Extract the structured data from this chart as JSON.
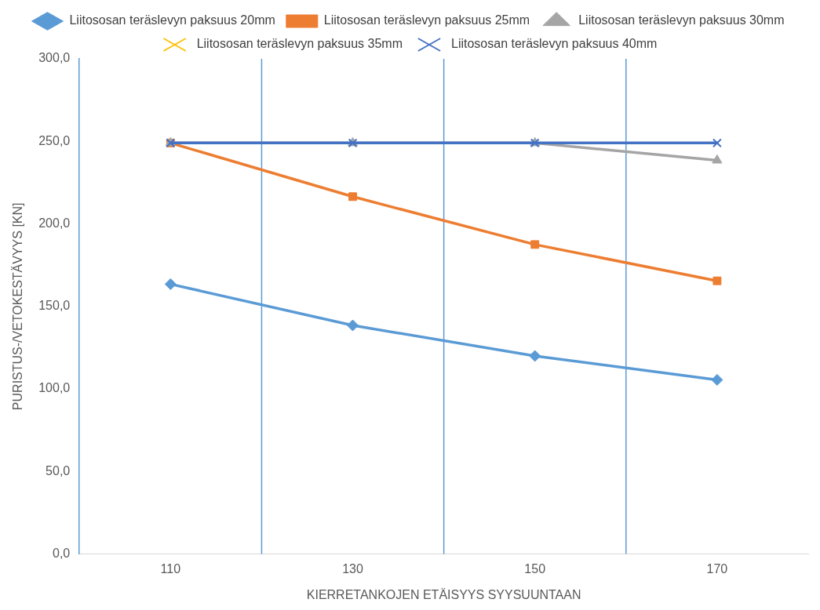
{
  "chart_data": {
    "type": "line",
    "xlabel": "KIERRETANKOJEN ETÄISYYS SYYSUUNTAAN",
    "ylabel": "PURISTUS-/VETOKESTÄVYYS [KN]",
    "x": [
      110,
      130,
      150,
      170
    ],
    "series": [
      {
        "name": "Liitososan teräslevyn paksuus 20mm",
        "color": "#5b9bd5",
        "marker": "diamond",
        "values": [
          163.5,
          138.5,
          120,
          105.5
        ]
      },
      {
        "name": "Liitososan teräslevyn paksuus 25mm",
        "color": "#ed7d31",
        "marker": "square",
        "values": [
          249,
          216.5,
          187.5,
          165.5
        ]
      },
      {
        "name": "Liitososan teräslevyn paksuus 30mm",
        "color": "#a5a5a5",
        "marker": "triangle",
        "values": [
          249,
          249,
          249,
          238.5
        ]
      },
      {
        "name": "Liitososan teräslevyn paksuus 35mm",
        "color": "#ffc000",
        "marker": "cross",
        "values": [
          null,
          null,
          null,
          null
        ]
      },
      {
        "name": "Liitososan teräslevyn paksuus 40mm",
        "color": "#4472c4",
        "marker": "cross",
        "values": [
          249,
          249,
          249,
          249
        ]
      }
    ],
    "xlim": [
      100,
      180
    ],
    "xticks": [
      110,
      130,
      150,
      170
    ],
    "ylim": [
      0,
      300
    ],
    "yticks": [
      {
        "value": 0,
        "label": "0,0"
      },
      {
        "value": 50,
        "label": "50,0"
      },
      {
        "value": 100,
        "label": "100,0"
      },
      {
        "value": 150,
        "label": "150,0"
      },
      {
        "value": 200,
        "label": "200,0"
      },
      {
        "value": 250,
        "label": "250,0"
      },
      {
        "value": 300,
        "label": "300,0"
      }
    ],
    "ref_lines": [
      {
        "axis": "x",
        "value": 120,
        "color": "#5b9bd5"
      },
      {
        "axis": "x",
        "value": 140,
        "color": "#5b9bd5"
      },
      {
        "axis": "x",
        "value": 160,
        "color": "#5b9bd5"
      }
    ],
    "legend": "top",
    "line_style": "solid"
  }
}
